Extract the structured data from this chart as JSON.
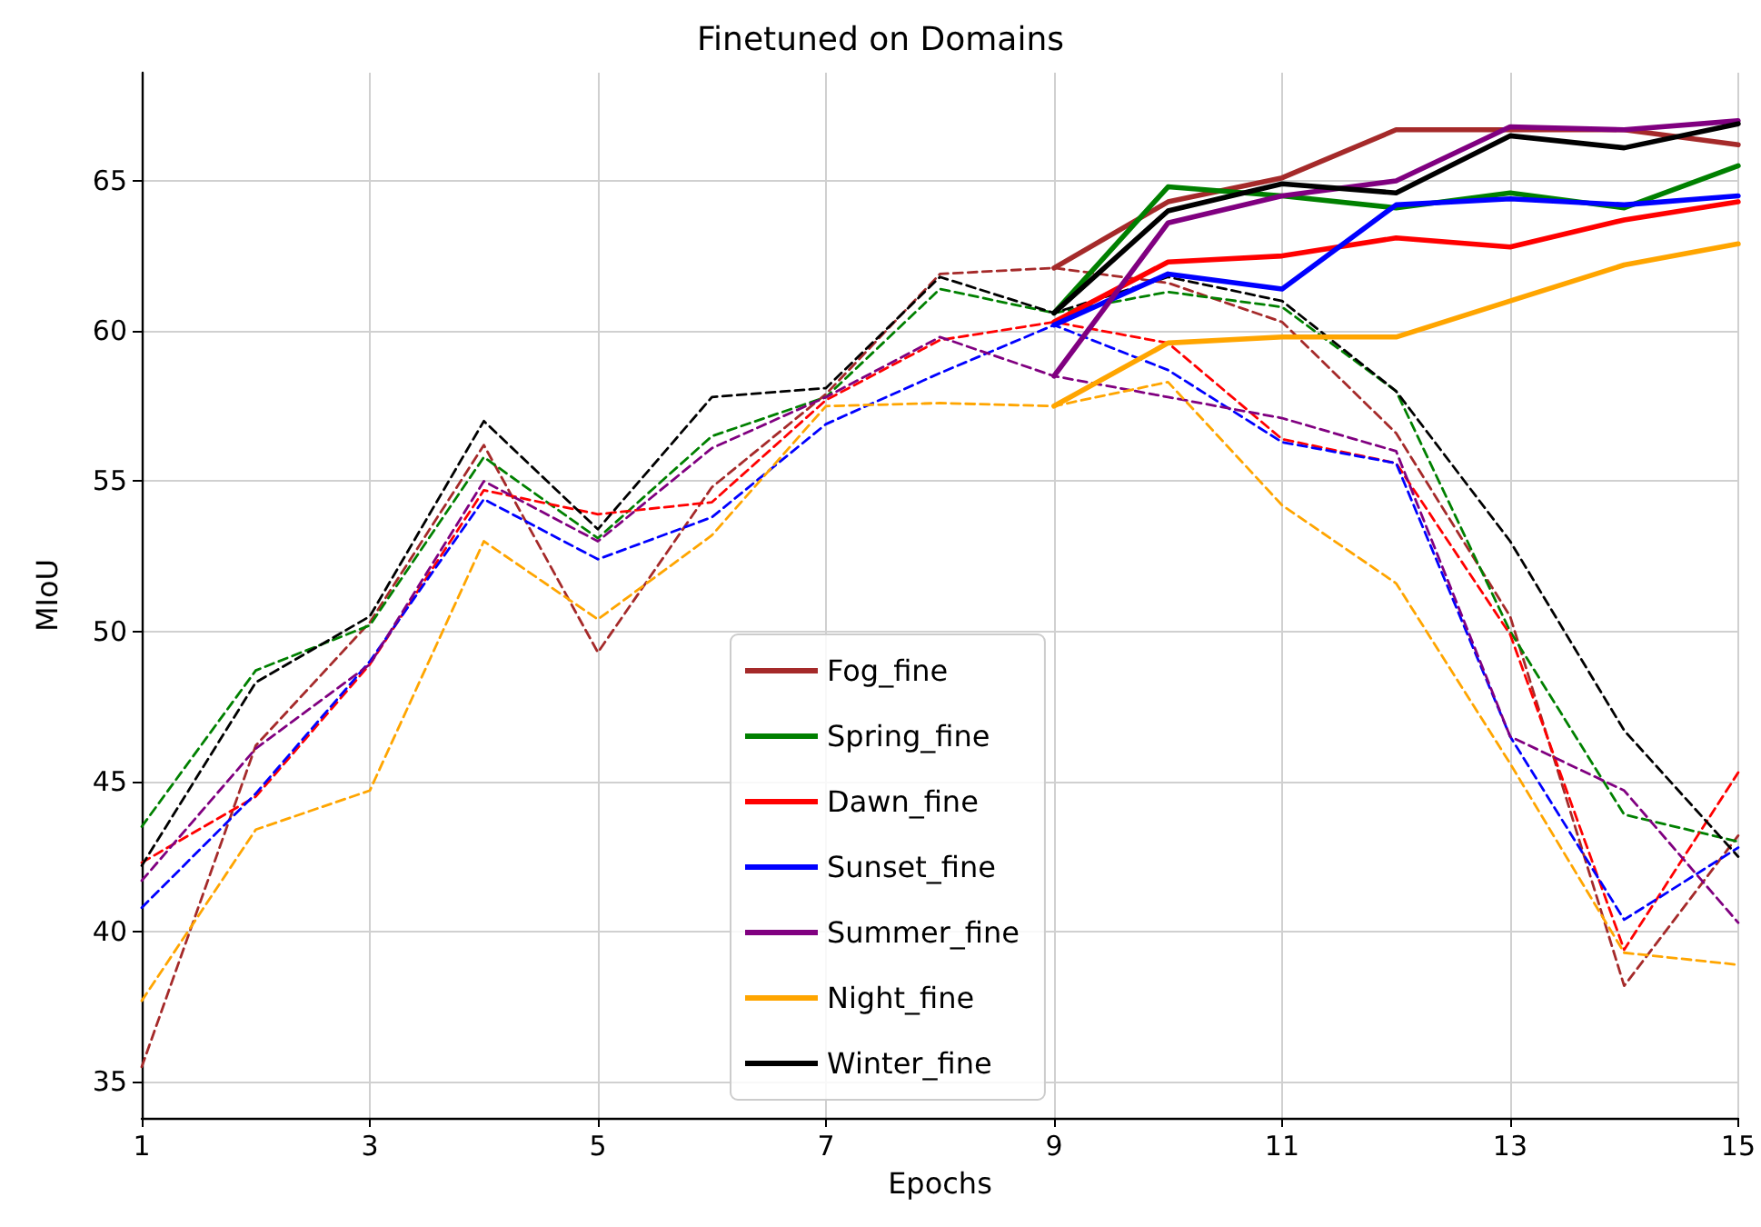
{
  "chart_data": {
    "type": "line",
    "title": "Finetuned on Domains",
    "xlabel": "Epochs",
    "ylabel": "MIoU",
    "xlim": [
      1,
      15
    ],
    "xticks": [
      1,
      3,
      5,
      7,
      9,
      11,
      13,
      15
    ],
    "ylim": [
      33.8,
      68.6
    ],
    "yticks": [
      35,
      40,
      45,
      50,
      55,
      60,
      65
    ],
    "grid": true,
    "legend": "bottom",
    "marker": "none",
    "series": [
      {
        "color": "#a52a2a",
        "line_style": "dashed",
        "x": [
          1,
          2,
          3,
          4,
          5,
          6,
          7,
          8,
          9,
          10,
          11,
          12,
          13,
          14,
          15
        ],
        "values": [
          35.5,
          46.2,
          50.3,
          56.2,
          49.3,
          54.8,
          57.9,
          61.9,
          62.1,
          61.6,
          60.3,
          56.6,
          50.5,
          38.2,
          43.2
        ]
      },
      {
        "color": "#008000",
        "line_style": "dashed",
        "x": [
          1,
          2,
          3,
          4,
          5,
          6,
          7,
          8,
          9,
          10,
          11,
          12,
          13,
          14,
          15
        ],
        "values": [
          43.5,
          48.7,
          50.2,
          55.8,
          53.1,
          56.5,
          57.8,
          61.4,
          60.6,
          61.3,
          60.8,
          58.0,
          50.0,
          43.9,
          43.0
        ]
      },
      {
        "color": "#ff0000",
        "line_style": "dashed",
        "x": [
          1,
          2,
          3,
          4,
          5,
          6,
          7,
          8,
          9,
          10,
          11,
          12,
          13,
          14,
          15
        ],
        "values": [
          42.3,
          44.5,
          48.9,
          54.7,
          53.9,
          54.3,
          57.7,
          59.7,
          60.3,
          59.6,
          56.4,
          55.6,
          49.9,
          39.4,
          45.3
        ]
      },
      {
        "color": "#0000ff",
        "line_style": "dashed",
        "x": [
          1,
          2,
          3,
          4,
          5,
          6,
          7,
          8,
          9,
          10,
          11,
          12,
          13,
          14,
          15
        ],
        "values": [
          40.8,
          44.6,
          49.0,
          54.4,
          52.4,
          53.8,
          56.9,
          58.6,
          60.2,
          58.7,
          56.3,
          55.6,
          46.5,
          40.4,
          42.8
        ]
      },
      {
        "color": "#800080",
        "line_style": "dashed",
        "x": [
          1,
          2,
          3,
          4,
          5,
          6,
          7,
          8,
          9,
          10,
          11,
          12,
          13,
          14,
          15
        ],
        "values": [
          41.7,
          46.1,
          48.9,
          55.0,
          53.0,
          56.1,
          57.8,
          59.8,
          58.5,
          57.8,
          57.1,
          56.0,
          46.5,
          44.7,
          40.3
        ]
      },
      {
        "color": "#ffa500",
        "line_style": "dashed",
        "x": [
          1,
          2,
          3,
          4,
          5,
          6,
          7,
          8,
          9,
          10,
          11,
          12,
          13,
          14,
          15
        ],
        "values": [
          37.7,
          43.4,
          44.7,
          53.0,
          50.4,
          53.2,
          57.5,
          57.6,
          57.5,
          58.3,
          54.2,
          51.6,
          45.6,
          39.3,
          38.9
        ]
      },
      {
        "color": "#000000",
        "line_style": "dashed",
        "x": [
          1,
          2,
          3,
          4,
          5,
          6,
          7,
          8,
          9,
          10,
          11,
          12,
          13,
          14,
          15
        ],
        "values": [
          42.2,
          48.3,
          50.5,
          57.0,
          53.4,
          57.8,
          58.1,
          61.8,
          60.6,
          61.8,
          61.0,
          58.0,
          53.0,
          46.7,
          42.5
        ]
      },
      {
        "name": "Fog_fine",
        "color": "#a52a2a",
        "line_style": "solid",
        "x": [
          9,
          10,
          11,
          12,
          13,
          14,
          15
        ],
        "values": [
          62.1,
          64.3,
          65.1,
          66.7,
          66.7,
          66.7,
          66.2
        ]
      },
      {
        "name": "Spring_fine",
        "color": "#008000",
        "line_style": "solid",
        "x": [
          9,
          10,
          11,
          12,
          13,
          14,
          15
        ],
        "values": [
          60.6,
          64.8,
          64.5,
          64.1,
          64.6,
          64.1,
          65.5
        ]
      },
      {
        "name": "Dawn_fine",
        "color": "#ff0000",
        "line_style": "solid",
        "x": [
          9,
          10,
          11,
          12,
          13,
          14,
          15
        ],
        "values": [
          60.3,
          62.3,
          62.5,
          63.1,
          62.8,
          63.7,
          64.3
        ]
      },
      {
        "name": "Sunset_fine",
        "color": "#0000ff",
        "line_style": "solid",
        "x": [
          9,
          10,
          11,
          12,
          13,
          14,
          15
        ],
        "values": [
          60.2,
          61.9,
          61.4,
          64.2,
          64.4,
          64.2,
          64.5
        ]
      },
      {
        "name": "Summer_fine",
        "color": "#800080",
        "line_style": "solid",
        "x": [
          9,
          10,
          11,
          12,
          13,
          14,
          15
        ],
        "values": [
          58.5,
          63.6,
          64.5,
          65.0,
          66.8,
          66.7,
          67.0
        ]
      },
      {
        "name": "Night_fine",
        "color": "#ffa500",
        "line_style": "solid",
        "x": [
          9,
          10,
          11,
          12,
          13,
          14,
          15
        ],
        "values": [
          57.5,
          59.6,
          59.8,
          59.8,
          61.0,
          62.2,
          62.9
        ]
      },
      {
        "name": "Winter_fine",
        "color": "#000000",
        "line_style": "solid",
        "x": [
          9,
          10,
          11,
          12,
          13,
          14,
          15
        ],
        "values": [
          60.6,
          64.0,
          64.9,
          64.6,
          66.5,
          66.1,
          66.9
        ]
      }
    ]
  }
}
